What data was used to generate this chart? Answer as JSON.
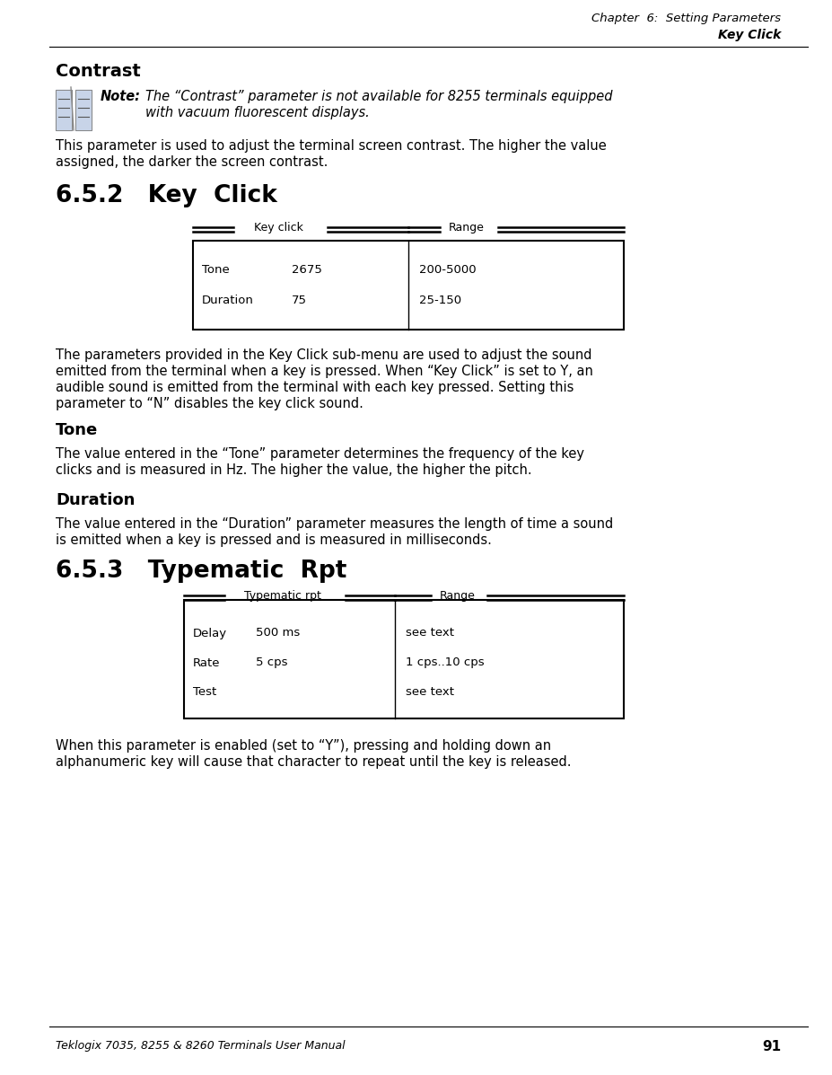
{
  "page_width": 9.28,
  "page_height": 11.97,
  "bg_color": "#ffffff",
  "header_line1": "Chapter  6:  Setting Parameters",
  "header_line2": "Key Click",
  "footer_text": "Teklogix 7035, 8255 & 8260 Terminals User Manual",
  "footer_page": "91",
  "section_contrast_title": "Contrast",
  "note_label": "Note:",
  "note_text1": "The “Contrast” parameter is not available for 8255 terminals equipped",
  "note_text2": "with vacuum fluorescent displays.",
  "contrast_body1": "This parameter is used to adjust the terminal screen contrast. The higher the value",
  "contrast_body2": "assigned, the darker the screen contrast.",
  "section_652_title": "6.5.2   Key  Click",
  "table1_col1_header": "Key click",
  "table1_col2_header": "Range",
  "table1_rows": [
    [
      "Tone",
      "2675",
      "200-5000"
    ],
    [
      "Duration",
      "75",
      "25-150"
    ]
  ],
  "keyclick_body1": "The parameters provided in the Key Click sub-menu are used to adjust the sound",
  "keyclick_body2": "emitted from the terminal when a key is pressed. When “Key Click” is set to Y, an",
  "keyclick_body3": "audible sound is emitted from the terminal with each key pressed. Setting this",
  "keyclick_body4": "parameter to “N” disables the key click sound.",
  "section_tone_title": "Tone",
  "tone_body1": "The value entered in the “Tone” parameter determines the frequency of the key",
  "tone_body2": "clicks and is measured in Hz. The higher the value, the higher the pitch.",
  "section_duration_title": "Duration",
  "duration_body1": "The value entered in the “Duration” parameter measures the length of time a sound",
  "duration_body2": "is emitted when a key is pressed and is measured in milliseconds.",
  "section_653_title": "6.5.3   Typematic  Rpt",
  "table2_col1_header": "Typematic rpt",
  "table2_col2_header": "Range",
  "table2_rows": [
    [
      "Delay",
      "500 ms",
      "see text"
    ],
    [
      "Rate",
      "5 cps",
      "1 cps..10 cps"
    ],
    [
      "Test",
      "",
      "see text"
    ]
  ],
  "typematic_body1": "When this parameter is enabled (set to “Y”), pressing and holding down an",
  "typematic_body2": "alphanumeric key will cause that character to repeat until the key is released."
}
